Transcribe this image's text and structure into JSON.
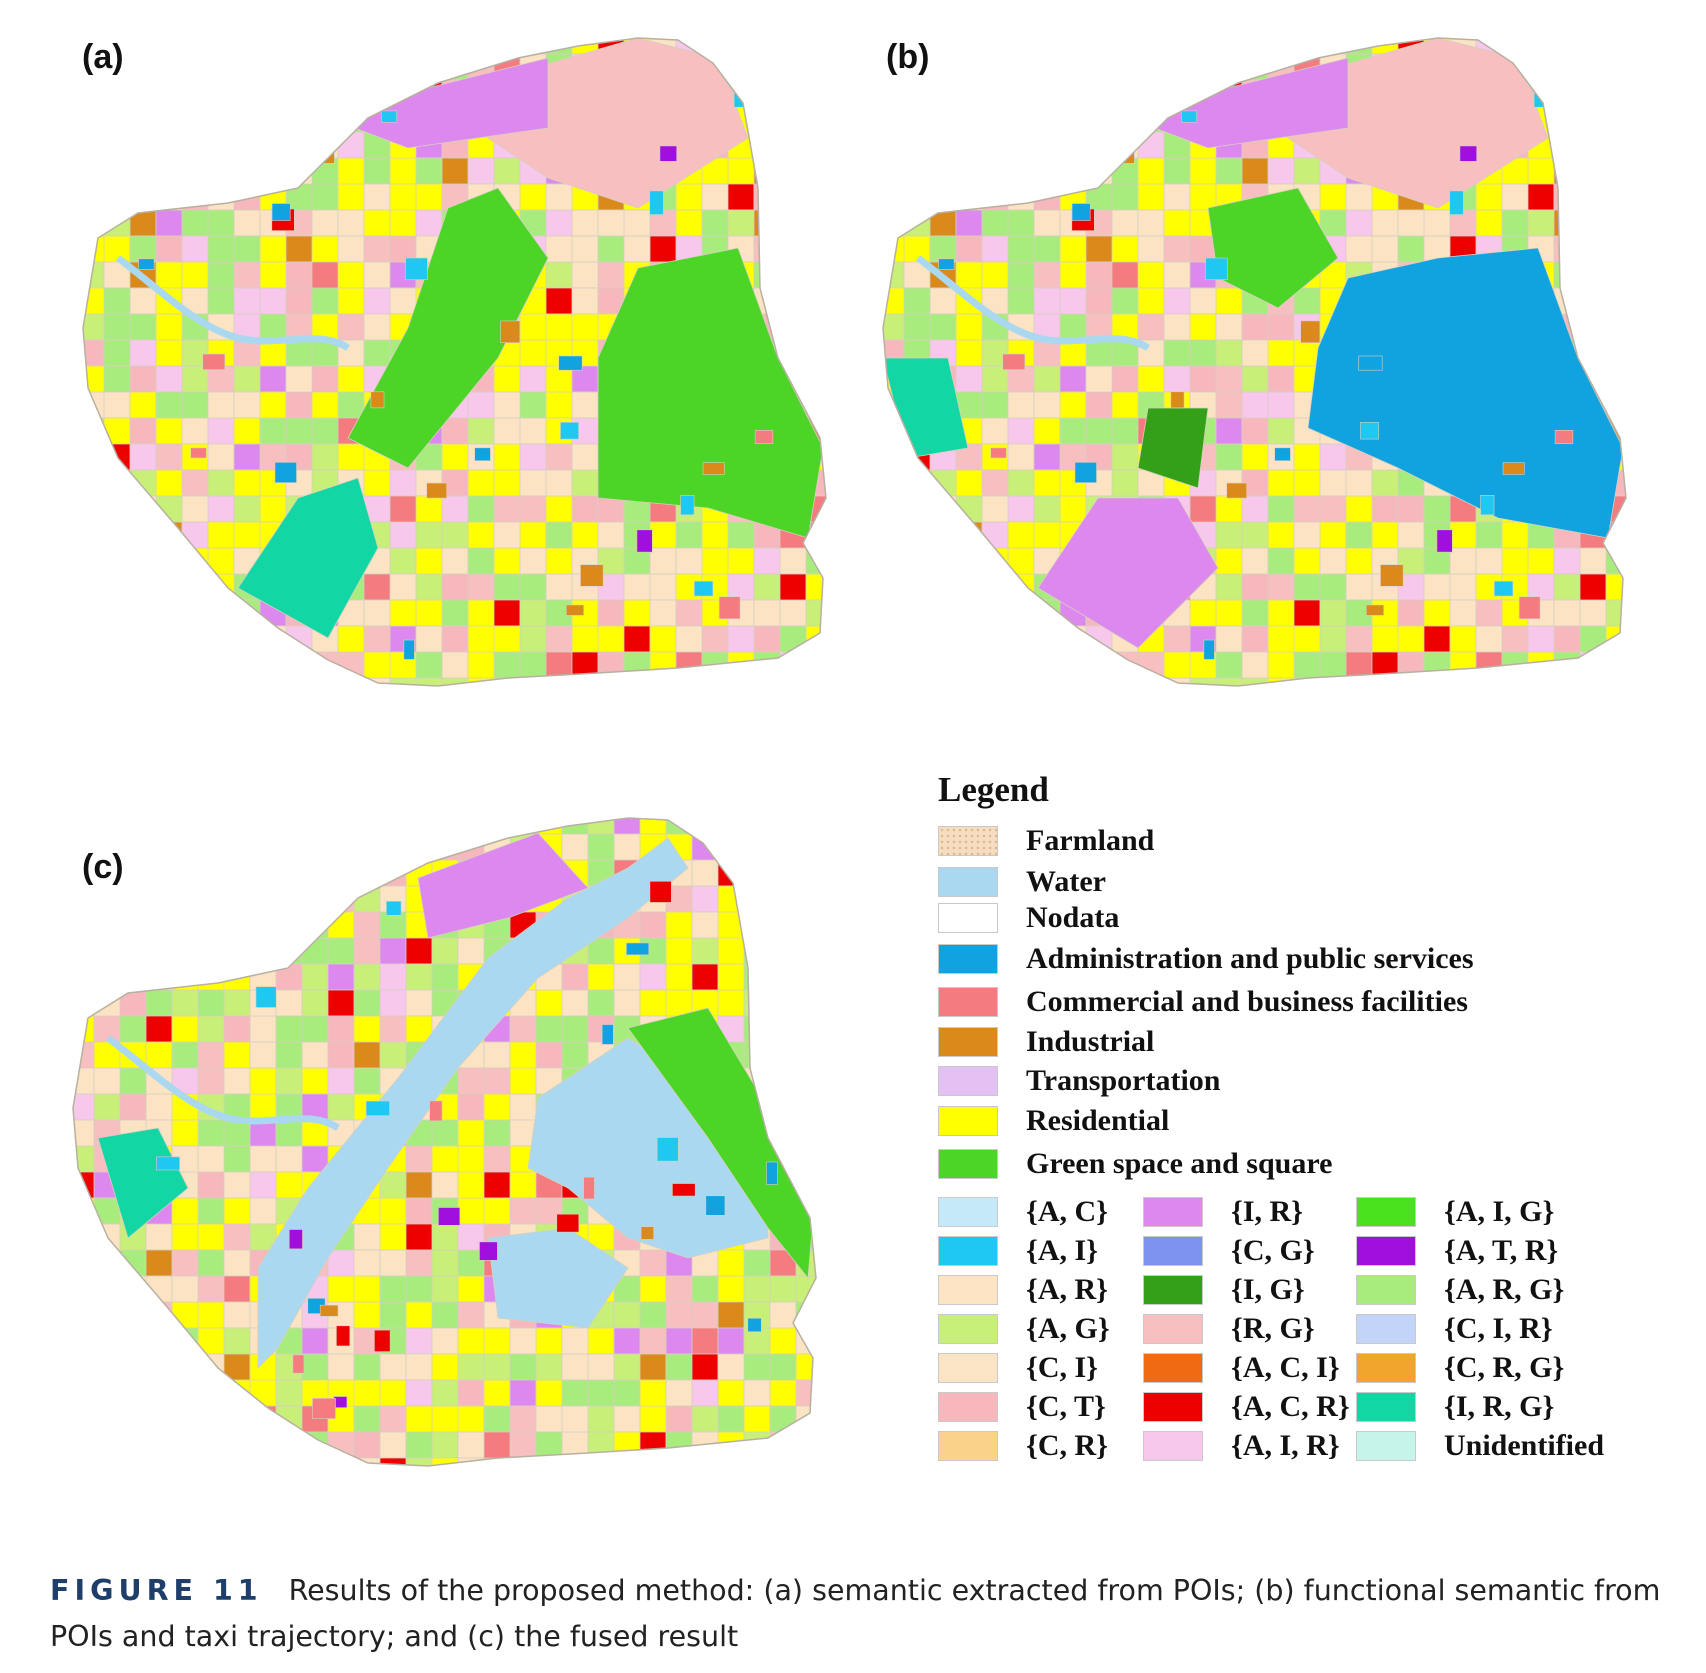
{
  "panels": [
    {
      "label": "(a)",
      "variant": "a"
    },
    {
      "label": "(b)",
      "variant": "b"
    },
    {
      "label": "(c)",
      "variant": "c"
    }
  ],
  "legend": {
    "title": "Legend",
    "categories": [
      {
        "label": "Farmland",
        "color": "#f6dcc0"
      },
      {
        "label": "Water",
        "color": "#a9d8f0"
      },
      {
        "label": "Nodata",
        "color": "#ffffff"
      },
      {
        "label": "Administration and public services",
        "color": "#10a3e0"
      },
      {
        "label": "Commercial and business facilities",
        "color": "#f47b7f"
      },
      {
        "label": "Industrial",
        "color": "#d98a1a"
      },
      {
        "label": "Transportation",
        "color": "#e3c2f3"
      },
      {
        "label": "Residential",
        "color": "#ffff00"
      },
      {
        "label": "Green space and square",
        "color": "#4cd426"
      }
    ],
    "combos": [
      [
        {
          "label": "{A, C}",
          "color": "#c6e9fa"
        },
        {
          "label": "{A, I}",
          "color": "#1ec8f0"
        },
        {
          "label": "{A, R}",
          "color": "#fbe3c3"
        },
        {
          "label": "{A, G}",
          "color": "#c8f078"
        },
        {
          "label": "{C, I}",
          "color": "#fbe3c6"
        },
        {
          "label": "{C, T}",
          "color": "#f6b8bc"
        },
        {
          "label": "{C, R}",
          "color": "#fbd28a"
        }
      ],
      [
        {
          "label": "{I, R}",
          "color": "#dd88ee"
        },
        {
          "label": "{C, G}",
          "color": "#7d91ee"
        },
        {
          "label": "{I, G}",
          "color": "#34a017"
        },
        {
          "label": "{R, G}",
          "color": "#f7bfbf"
        },
        {
          "label": "{A, C, I}",
          "color": "#f06a14"
        },
        {
          "label": "{A, C, R}",
          "color": "#ee0000"
        },
        {
          "label": "{A, I, R}",
          "color": "#f7c8ec"
        }
      ],
      [
        {
          "label": "{A, I, G}",
          "color": "#4ae21e"
        },
        {
          "label": "{A, T, R}",
          "color": "#a10fdf"
        },
        {
          "label": "{A, R, G}",
          "color": "#a8ec7e"
        },
        {
          "label": "{C, I, R}",
          "color": "#c4d4f8"
        },
        {
          "label": "{C, R, G}",
          "color": "#f2a52c"
        },
        {
          "label": "{I, R, G}",
          "color": "#12d6a4"
        },
        {
          "label": "Unidentified",
          "color": "#c4f4ea"
        }
      ]
    ]
  },
  "caption": {
    "figure_label": "FIGURE 11",
    "text": "Results of the proposed method: (a) semantic extracted from POIs; (b) functional semantic from POIs and taxi trajectory; and (c) the fused result"
  }
}
